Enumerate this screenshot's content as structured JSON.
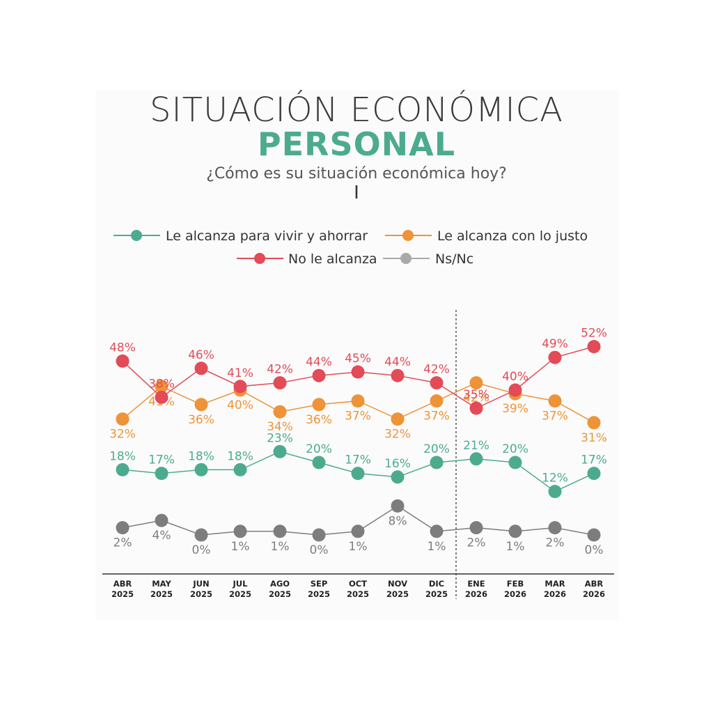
{
  "header": {
    "title_line1": "SITUACIÓN ECONÓMICA",
    "title_line2": "PERSONAL",
    "subtitle": "¿Cómo es su situación económica hoy?",
    "cursor_glyph": "I"
  },
  "chart_data": {
    "type": "line",
    "title": "SITUACIÓN ECONÓMICA PERSONAL",
    "subtitle": "¿Cómo es su situación económica hoy?",
    "categories": [
      [
        "ABR",
        "2025"
      ],
      [
        "MAY",
        "2025"
      ],
      [
        "JUN",
        "2025"
      ],
      [
        "JUL",
        "2025"
      ],
      [
        "AGO",
        "2025"
      ],
      [
        "SEP",
        "2025"
      ],
      [
        "OCT",
        "2025"
      ],
      [
        "NOV",
        "2025"
      ],
      [
        "DIC",
        "2025"
      ],
      [
        "ENE",
        "2026"
      ],
      [
        "FEB",
        "2026"
      ],
      [
        "MAR",
        "2026"
      ],
      [
        "ABR",
        "2026"
      ]
    ],
    "series": [
      {
        "name": "Le alcanza para vivir y ahorrar",
        "color": "#4cab8f",
        "values": [
          18,
          17,
          18,
          18,
          23,
          20,
          17,
          16,
          20,
          21,
          20,
          12,
          17
        ]
      },
      {
        "name": "Le alcanza con lo justo",
        "color": "#ee9338",
        "values": [
          32,
          41,
          36,
          40,
          34,
          36,
          37,
          32,
          37,
          42,
          39,
          37,
          31
        ]
      },
      {
        "name": "No le alcanza",
        "color": "#e24b57",
        "values": [
          48,
          38,
          46,
          41,
          42,
          44,
          45,
          44,
          42,
          35,
          40,
          49,
          52
        ]
      },
      {
        "name": "Ns/Nc",
        "color": "#7d7d7d",
        "legend_color": "#a9a9a9",
        "values": [
          2,
          4,
          0,
          1,
          1,
          0,
          1,
          8,
          1,
          2,
          1,
          2,
          0
        ]
      }
    ],
    "value_suffix": "%",
    "year_divider_after": "DIC 2025",
    "legend_placement": "top",
    "grid": false
  }
}
